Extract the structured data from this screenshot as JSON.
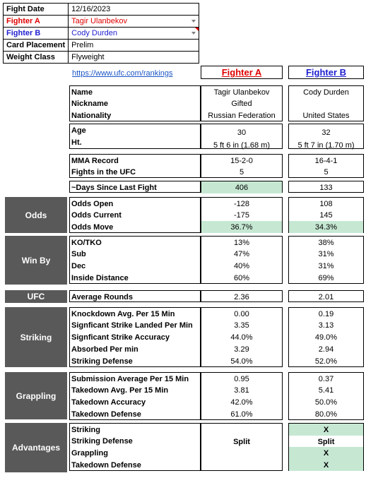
{
  "info": {
    "fight_date_label": "Fight Date",
    "fight_date": "12/16/2023",
    "fighter_a_label": "Fighter A",
    "fighter_a": "Tagir Ulanbekov",
    "fighter_b_label": "Fighter B",
    "fighter_b": "Cody Durden",
    "card_label": "Card Placement",
    "card": "Prelim",
    "weight_label": "Weight Class",
    "weight": "Flyweight"
  },
  "link": "https://www.ufc.com/rankings",
  "headers": {
    "a": "Fighter A",
    "b": "Fighter B"
  },
  "colors": {
    "fighter_a": "#e00000",
    "fighter_b": "#1f1fd1",
    "highlight": "#c6e8d3",
    "section": "#595959"
  },
  "sections": {
    "odds": "Odds",
    "win_by": "Win By",
    "ufc": "UFC",
    "striking": "Striking",
    "grappling": "Grappling",
    "advantages": "Advantages"
  },
  "labels": {
    "name": "Name",
    "nickname": "Nickname",
    "nationality": "Nationality",
    "age": "Age",
    "ht": "Ht.",
    "record": "MMA Record",
    "fights": "Fights in the UFC",
    "days": "~Days Since Last Fight",
    "odds_open": "Odds Open",
    "odds_current": "Odds Current",
    "odds_move": "Odds Move",
    "ko": "KO/TKO",
    "sub": "Sub",
    "dec": "Dec",
    "inside": "Inside Distance",
    "avg_rounds": "Average Rounds",
    "kd": "Knockdown Avg. Per 15 Min",
    "ssl": "Signficant Strike Landed Per Min",
    "ssa": "Signficant Strike Accuracy",
    "absorbed": "Absorbed Per min",
    "str_def": "Striking Defense",
    "sub_avg": "Submission Average  Per 15 Min",
    "td_avg": "Takedown Avg. Per 15 Min",
    "td_acc": "Takedown Accuracy",
    "td_def": "Takedown Defense",
    "adv_striking": "Striking",
    "adv_str_def": "Striking Defense",
    "adv_grappling": "Grappling",
    "adv_td_def": "Takedown Defense"
  },
  "a": {
    "name": "Tagir Ulanbekov",
    "nickname": "Gifted",
    "nationality": "Russian Federation",
    "age": "30",
    "ht": "5 ft 6 in (1.68 m)",
    "record": "15-2-0",
    "fights": "5",
    "days": "406",
    "odds_open": "-128",
    "odds_current": "-175",
    "odds_move": "36.7%",
    "ko": "13%",
    "sub": "47%",
    "dec": "40%",
    "inside": "60%",
    "avg_rounds": "2.36",
    "kd": "0.00",
    "ssl": "3.35",
    "ssa": "44.0%",
    "absorbed": "3.29",
    "str_def": "54.0%",
    "sub_avg": "0.95",
    "td_avg": "3.81",
    "td_acc": "42.0%",
    "td_def": "61.0%",
    "adv_str_def": "Split"
  },
  "b": {
    "name": "Cody Durden",
    "nickname": "",
    "nationality": "United States",
    "age": "32",
    "ht": "5 ft 7 in (1.70 m)",
    "record": "16-4-1",
    "fights": "5",
    "days": "133",
    "odds_open": "108",
    "odds_current": "145",
    "odds_move": "34.3%",
    "ko": "38%",
    "sub": "31%",
    "dec": "31%",
    "inside": "69%",
    "avg_rounds": "2.01",
    "kd": "0.19",
    "ssl": "3.13",
    "ssa": "49.0%",
    "absorbed": "2.94",
    "str_def": "52.0%",
    "sub_avg": "0.37",
    "td_avg": "5.41",
    "td_acc": "50.0%",
    "td_def": "80.0%",
    "adv_striking": "X",
    "adv_str_def": "Split",
    "adv_grappling": "X",
    "adv_td_def": "X"
  }
}
